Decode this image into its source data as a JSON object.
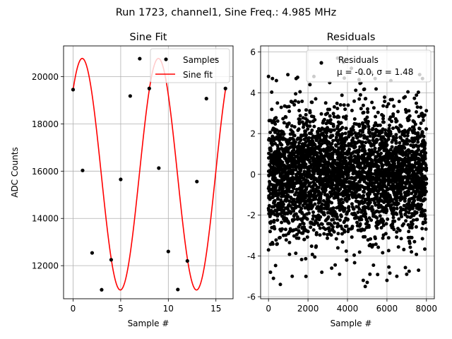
{
  "suptitle": "Run 1723, channel1, Sine Freq.: 4.985 MHz",
  "chart_data": [
    {
      "type": "line",
      "title": "Sine Fit",
      "xlabel": "Sample #",
      "ylabel": "ADC Counts",
      "xlim": [
        -1.0,
        16.8
      ],
      "ylim": [
        10600,
        21300
      ],
      "xticks": [
        0,
        5,
        10,
        15
      ],
      "yticks": [
        12000,
        14000,
        16000,
        18000,
        20000
      ],
      "grid": true,
      "legend": {
        "position": "top-right",
        "entries": [
          "Samples",
          "Sine fit"
        ]
      },
      "series": [
        {
          "name": "Samples",
          "style": "markers",
          "color": "#000000",
          "x": [
            0,
            1,
            2,
            3,
            4,
            5,
            6,
            7,
            8,
            9,
            10,
            11,
            12,
            13,
            14,
            15,
            16
          ],
          "y": [
            19450,
            16030,
            12540,
            10980,
            12250,
            15650,
            19180,
            20760,
            19500,
            16130,
            12600,
            10990,
            12200,
            15560,
            19070,
            20740,
            19500
          ]
        },
        {
          "name": "Sine fit",
          "style": "line",
          "color": "#ff0000",
          "model": {
            "offset": 15870,
            "amplitude": 4900,
            "period_samples": 8.0,
            "phase_rad": 0.816,
            "x_range": [
              0,
              16
            ]
          }
        }
      ]
    },
    {
      "type": "scatter",
      "title": "Residuals",
      "xlabel": "Sample #",
      "xlim": [
        -400,
        8400
      ],
      "ylim": [
        -6.1,
        6.3
      ],
      "xticks": [
        0,
        2000,
        4000,
        6000,
        8000
      ],
      "yticks": [
        -6,
        -4,
        -2,
        0,
        2,
        4,
        6
      ],
      "grid": true,
      "legend": {
        "position": "top-right",
        "entries": [
          "Residuals",
          "μ = -0.0, σ = 1.48"
        ]
      },
      "series": [
        {
          "name": "Residuals",
          "color": "#000000",
          "n_points": 8000,
          "x_range": [
            0,
            8000
          ],
          "mean": 0.0,
          "std": 1.48,
          "outliers": [
            {
              "x": 0,
              "y": 4.8
            },
            {
              "x": 200,
              "y": 4.7
            },
            {
              "x": 400,
              "y": 4.6
            },
            {
              "x": 600,
              "y": -5.4
            },
            {
              "x": 100,
              "y": -4.8
            },
            {
              "x": 250,
              "y": -5.1
            },
            {
              "x": 1200,
              "y": -5.0
            },
            {
              "x": 1400,
              "y": 4.7
            },
            {
              "x": 2100,
              "y": 4.4
            },
            {
              "x": 2300,
              "y": 4.8
            },
            {
              "x": 3100,
              "y": 4.5
            },
            {
              "x": 3200,
              "y": -4.6
            },
            {
              "x": 3500,
              "y": 5.7
            },
            {
              "x": 3800,
              "y": 5.5
            },
            {
              "x": 4200,
              "y": 5.2
            },
            {
              "x": 4800,
              "y": -5.2
            },
            {
              "x": 4900,
              "y": -5.5
            },
            {
              "x": 5000,
              "y": -5.3
            },
            {
              "x": 5200,
              "y": 5.0
            },
            {
              "x": 5400,
              "y": 4.7
            },
            {
              "x": 6000,
              "y": -5.2
            },
            {
              "x": 6200,
              "y": 4.6
            },
            {
              "x": 6500,
              "y": -5.0
            },
            {
              "x": 7000,
              "y": -4.9
            },
            {
              "x": 7600,
              "y": -4.7
            },
            {
              "x": 7800,
              "y": 4.7
            },
            {
              "x": 3600,
              "y": -4.9
            },
            {
              "x": 2700,
              "y": -4.8
            }
          ]
        }
      ]
    }
  ]
}
